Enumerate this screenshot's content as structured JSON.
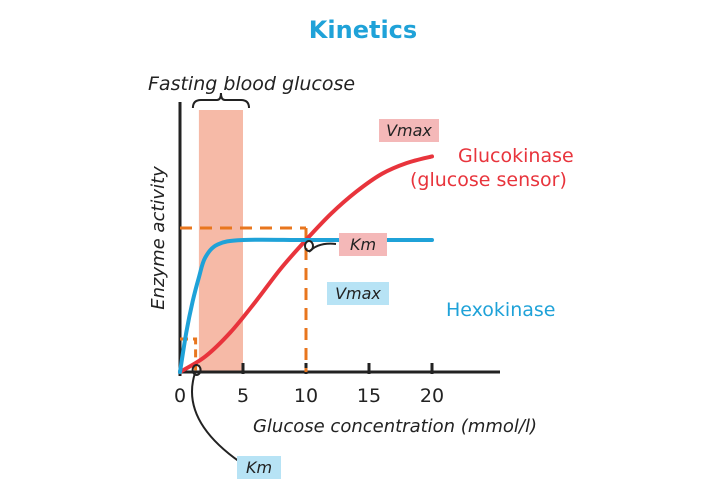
{
  "chart_data": {
    "type": "line",
    "title": "Kinetics",
    "xlabel": "Glucose concentration (mmol/l)",
    "ylabel": "Enzyme activity",
    "x_ticks": [
      0,
      5,
      10,
      15,
      20
    ],
    "xlim": [
      0,
      25
    ],
    "ylim": [
      0,
      1
    ],
    "fasting_band": {
      "label": "Fasting blood glucose",
      "x_range": [
        1.5,
        5
      ]
    },
    "series": [
      {
        "name": "Glucokinase",
        "subname": "(glucose sensor)",
        "color": "#e8343c",
        "vmax_label": "Vmax",
        "km_label": "Km",
        "km": 10,
        "x": [
          0,
          2,
          4,
          6,
          8,
          10,
          12,
          14,
          16,
          18,
          20
        ],
        "y": [
          0,
          0.07,
          0.18,
          0.32,
          0.47,
          0.6,
          0.72,
          0.82,
          0.9,
          0.95,
          0.98
        ]
      },
      {
        "name": "Hexokinase",
        "color": "#1fa2d8",
        "vmax_label": "Vmax",
        "km_label": "Km",
        "km": 1,
        "x": [
          0,
          0.5,
          1,
          1.5,
          2,
          3,
          5,
          10,
          15,
          20
        ],
        "y": [
          0,
          0.18,
          0.32,
          0.43,
          0.52,
          0.58,
          0.6,
          0.6,
          0.6,
          0.6
        ]
      }
    ]
  }
}
